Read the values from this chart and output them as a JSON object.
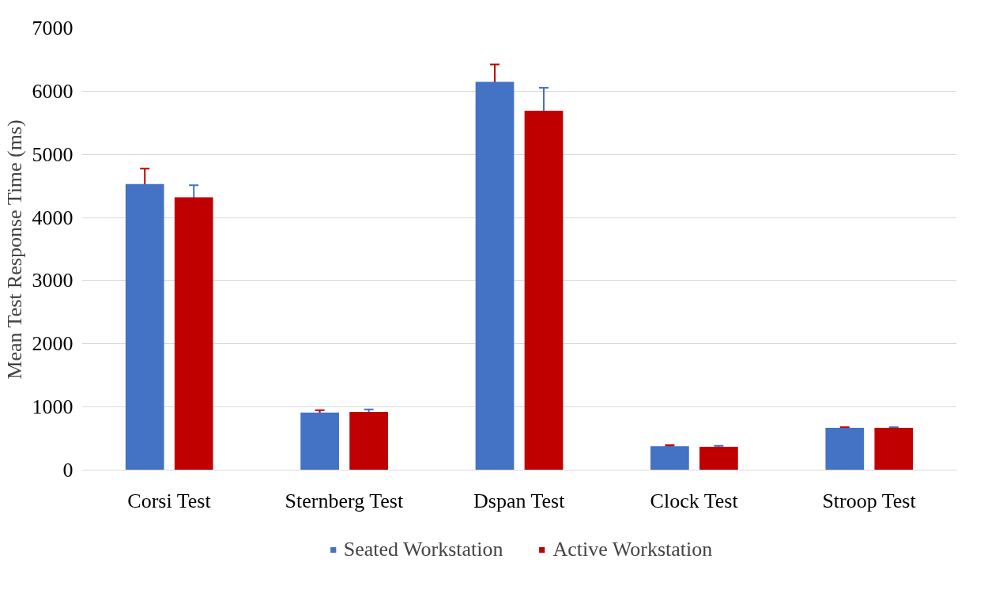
{
  "chart_data": {
    "type": "bar",
    "ylabel": "Mean Test Response Time (ms)",
    "categories": [
      "Corsi Test",
      "Sternberg Test",
      "Dspan Test",
      "Clock Test",
      "Stroop Test"
    ],
    "series": [
      {
        "name": "Seated Workstation",
        "color": "#4472c4",
        "values": [
          4530,
          910,
          6150,
          380,
          670
        ],
        "errors": [
          245,
          40,
          275,
          15,
          10
        ]
      },
      {
        "name": "Active Workstation",
        "color": "#c00000",
        "values": [
          4320,
          920,
          5690,
          370,
          670
        ],
        "errors": [
          190,
          40,
          365,
          15,
          10
        ]
      }
    ],
    "ylim": [
      0,
      7000
    ],
    "yticks": [
      0,
      1000,
      2000,
      3000,
      4000,
      5000,
      6000,
      7000
    ],
    "grid": "y",
    "legend": "bottom"
  }
}
